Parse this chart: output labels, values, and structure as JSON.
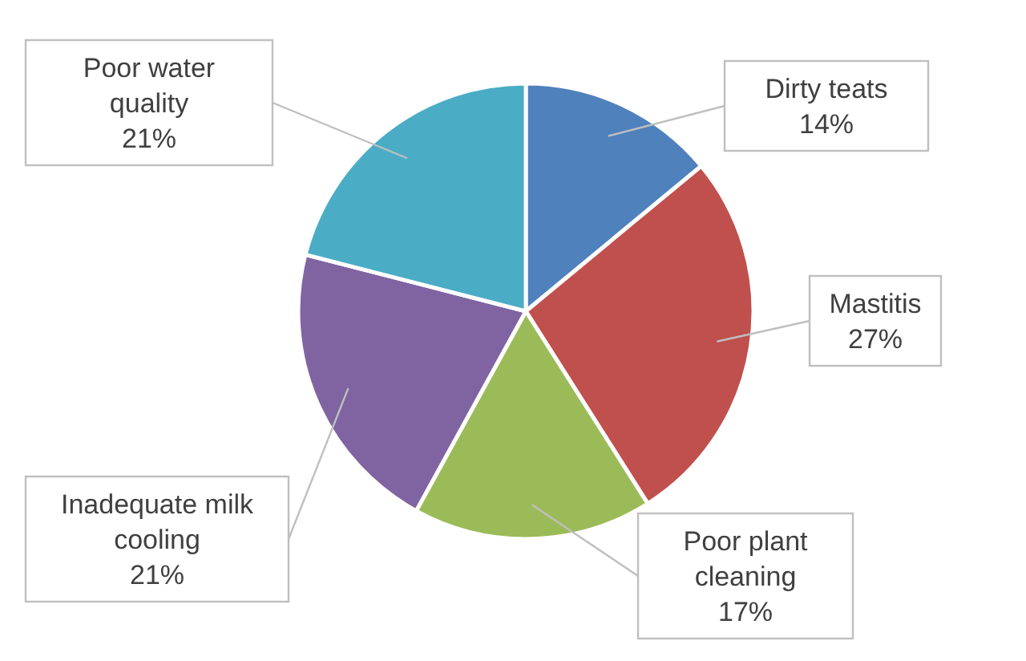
{
  "chart_data": {
    "type": "pie",
    "categories": [
      "Dirty teats",
      "Mastitis",
      "Poor plant cleaning",
      "Inadequate milk cooling",
      "Poor water quality"
    ],
    "values": [
      14,
      27,
      17,
      21,
      21
    ],
    "colors": [
      "#4f81bd",
      "#c0504d",
      "#9bbb59",
      "#8064a2",
      "#4bacc6"
    ],
    "value_labels": [
      "14%",
      "27%",
      "17%",
      "21%",
      "21%"
    ]
  }
}
